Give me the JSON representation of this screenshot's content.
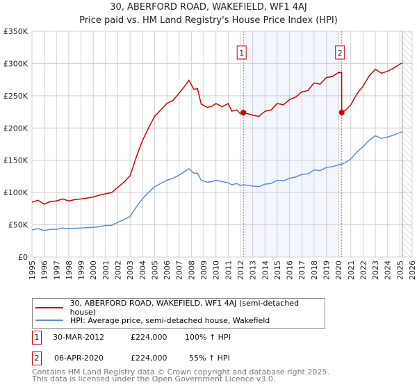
{
  "chart_data": {
    "type": "line",
    "title": "30, ABERFORD ROAD, WAKEFIELD, WF1 4AJ",
    "subtitle": "Price paid vs. HM Land Registry's House Price Index (HPI)",
    "xlim": [
      1995,
      2026
    ],
    "ylim": [
      0,
      350000
    ],
    "x_ticks": [
      "1995",
      "1996",
      "1997",
      "1998",
      "1999",
      "2000",
      "2001",
      "2002",
      "2003",
      "2004",
      "2005",
      "2006",
      "2007",
      "2008",
      "2009",
      "2010",
      "2011",
      "2012",
      "2013",
      "2014",
      "2015",
      "2016",
      "2017",
      "2018",
      "2019",
      "2020",
      "2021",
      "2022",
      "2023",
      "2024",
      "2025",
      "2026"
    ],
    "y_ticks": [
      {
        "v": 0,
        "label": "£0"
      },
      {
        "v": 50000,
        "label": "£50K"
      },
      {
        "v": 100000,
        "label": "£100K"
      },
      {
        "v": 150000,
        "label": "£150K"
      },
      {
        "v": 200000,
        "label": "£200K"
      },
      {
        "v": 250000,
        "label": "£250K"
      },
      {
        "v": 300000,
        "label": "£300K"
      },
      {
        "v": 350000,
        "label": "£350K"
      }
    ],
    "grid": true,
    "series": [
      {
        "name": "30, ABERFORD ROAD, WAKEFIELD, WF1 4AJ (semi-detached house)",
        "color": "#cc0000",
        "x": [
          1995,
          1995.5,
          1996,
          1996.5,
          1997,
          1997.5,
          1998,
          1998.5,
          1999,
          2000,
          2000.5,
          2001,
          2001.5,
          2002,
          2002.5,
          2003,
          2003.3,
          2003.6,
          2004,
          2004.5,
          2005,
          2005.5,
          2006,
          2006.5,
          2007,
          2007.5,
          2007.8,
          2008.2,
          2008.5,
          2008.8,
          2009.3,
          2009.7,
          2010,
          2010.5,
          2011,
          2011.3,
          2011.7,
          2012,
          2012.24,
          2013,
          2013.5,
          2014,
          2014.5,
          2015,
          2015.5,
          2016,
          2016.5,
          2017,
          2017.5,
          2018,
          2018.5,
          2019,
          2019.5,
          2020,
          2020.25,
          2020.26,
          2020.6,
          2021,
          2021.5,
          2022,
          2022.5,
          2023,
          2023.5,
          2024,
          2024.5,
          2025,
          2025.2
        ],
        "y": [
          85,
          88,
          82,
          86,
          87,
          90,
          87,
          89,
          90,
          93,
          96,
          98,
          100,
          108,
          116,
          126,
          143,
          160,
          180,
          200,
          218,
          228,
          238,
          243,
          254,
          266,
          274,
          260,
          261,
          237,
          232,
          234,
          238,
          233,
          238,
          226,
          228,
          222,
          224,
          220,
          218,
          226,
          228,
          238,
          236,
          244,
          248,
          256,
          258,
          270,
          268,
          278,
          280,
          286,
          286,
          224,
          228,
          236,
          253,
          265,
          281,
          291,
          285,
          288,
          293,
          299,
          301
        ]
      },
      {
        "name": "HPI: Average price, semi-detached house, Wakefield",
        "color": "#5b8bd0",
        "x": [
          1995,
          1995.5,
          1996,
          1996.5,
          1997,
          1997.5,
          1998,
          1999,
          2000,
          2000.5,
          2001,
          2001.5,
          2002,
          2002.5,
          2003,
          2003.3,
          2003.6,
          2004,
          2004.5,
          2005,
          2005.5,
          2006,
          2006.5,
          2007,
          2007.5,
          2007.8,
          2008.2,
          2008.5,
          2008.8,
          2009.3,
          2009.7,
          2010,
          2010.5,
          2011,
          2011.3,
          2011.7,
          2012,
          2012.24,
          2013,
          2013.5,
          2014,
          2014.5,
          2015,
          2015.5,
          2016,
          2016.5,
          2017,
          2017.5,
          2018,
          2018.5,
          2019,
          2019.5,
          2020,
          2020.26,
          2020.6,
          2021,
          2021.5,
          2022,
          2022.5,
          2023,
          2023.5,
          2024,
          2024.5,
          2025,
          2025.2
        ],
        "y": [
          42,
          44,
          41,
          43,
          43,
          45,
          44,
          45,
          46,
          47,
          49,
          49,
          54,
          58,
          63,
          72,
          80,
          90,
          100,
          109,
          114,
          119,
          122,
          127,
          133,
          137,
          130,
          130,
          119,
          116,
          117,
          119,
          117,
          115,
          112,
          114,
          111,
          112,
          110,
          109,
          113,
          114,
          119,
          118,
          122,
          124,
          128,
          129,
          135,
          134,
          139,
          140,
          143,
          144,
          147,
          152,
          163,
          171,
          181,
          188,
          184,
          186,
          189,
          193,
          194
        ]
      }
    ],
    "y_unit_multiplier": 1000,
    "annotations": [
      {
        "label": "1",
        "x": 2012.24,
        "y": 224
      },
      {
        "label": "2",
        "x": 2020.26,
        "y": 224
      }
    ],
    "shaded_range": [
      2012.24,
      2020.26
    ],
    "forecast_hatch_from": 2025.2
  },
  "legend": [
    {
      "label": "30, ABERFORD ROAD, WAKEFIELD, WF1 4AJ (semi-detached house)",
      "color": "#cc0000"
    },
    {
      "label": "HPI: Average price, semi-detached house, Wakefield",
      "color": "#5b8bd0"
    }
  ],
  "sales": [
    {
      "num": "1",
      "date": "30-MAR-2012",
      "price": "£224,000",
      "hpi": "100% ↑ HPI"
    },
    {
      "num": "2",
      "date": "06-APR-2020",
      "price": "£224,000",
      "hpi": "55% ↑ HPI"
    }
  ],
  "footer": [
    "Contains HM Land Registry data © Crown copyright and database right 2025.",
    "This data is licensed under the Open Government Licence v3.0."
  ]
}
